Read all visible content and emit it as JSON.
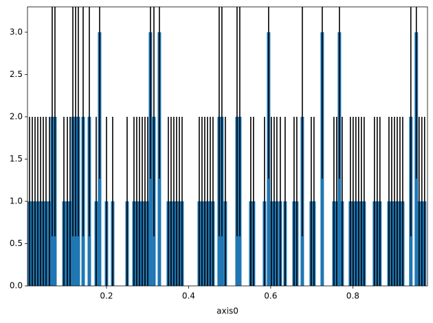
{
  "chart_data": {
    "type": "bar",
    "xlabel": "axis0",
    "color": "#1f77b4",
    "error_color": "#000000",
    "x": [
      0.0125,
      0.0192,
      0.0259,
      0.0326,
      0.0393,
      0.046,
      0.0527,
      0.0611,
      0.0677,
      0.0744,
      0.0962,
      0.1046,
      0.1113,
      0.118,
      0.1247,
      0.1313,
      0.1431,
      0.1581,
      0.1749,
      0.1832,
      0.2,
      0.215,
      0.2502,
      0.2669,
      0.2736,
      0.2803,
      0.287,
      0.2937,
      0.3004,
      0.3071,
      0.3155,
      0.3288,
      0.3506,
      0.3573,
      0.364,
      0.3707,
      0.3774,
      0.3841,
      0.4259,
      0.4326,
      0.4393,
      0.446,
      0.4527,
      0.4594,
      0.4744,
      0.4811,
      0.4895,
      0.518,
      0.5247,
      0.5514,
      0.5581,
      0.5849,
      0.5949,
      0.6016,
      0.6083,
      0.615,
      0.6234,
      0.6351,
      0.6569,
      0.6636,
      0.677,
      0.6987,
      0.7054,
      0.7255,
      0.754,
      0.7607,
      0.7674,
      0.7741,
      0.7941,
      0.8008,
      0.8075,
      0.8142,
      0.8209,
      0.8276,
      0.8527,
      0.8594,
      0.8661,
      0.8881,
      0.8948,
      0.9015,
      0.9082,
      0.9149,
      0.9216,
      0.9414,
      0.9548,
      0.9615,
      0.9682,
      0.9749
    ],
    "values": [
      1,
      1,
      1,
      1,
      1,
      1,
      1,
      1,
      2,
      2,
      1,
      1,
      1,
      2,
      2,
      2,
      2,
      2,
      1,
      3,
      1,
      1,
      1,
      1,
      1,
      1,
      1,
      1,
      1,
      3,
      2,
      3,
      1,
      1,
      1,
      1,
      1,
      1,
      1,
      1,
      1,
      1,
      1,
      1,
      2,
      2,
      1,
      2,
      2,
      1,
      1,
      1,
      3,
      1,
      1,
      1,
      1,
      1,
      1,
      1,
      2,
      1,
      1,
      3,
      1,
      1,
      3,
      1,
      1,
      1,
      1,
      1,
      1,
      1,
      1,
      1,
      1,
      1,
      1,
      1,
      1,
      1,
      1,
      2,
      3,
      1,
      1,
      1
    ],
    "errors": [
      1,
      1,
      1,
      1,
      1,
      1,
      1,
      1,
      1.414,
      1.414,
      1,
      1,
      1,
      1.414,
      1.414,
      1.414,
      1.414,
      1.414,
      1,
      1.732,
      1,
      1,
      1,
      1,
      1,
      1,
      1,
      1,
      1,
      1.732,
      1.414,
      1.732,
      1,
      1,
      1,
      1,
      1,
      1,
      1,
      1,
      1,
      1,
      1,
      1,
      1.414,
      1.414,
      1,
      1.414,
      1.414,
      1,
      1,
      1,
      1.732,
      1,
      1,
      1,
      1,
      1,
      1,
      1,
      1.414,
      1,
      1,
      1.732,
      1,
      1,
      1.732,
      1,
      1,
      1,
      1,
      1,
      1,
      1,
      1,
      1,
      1,
      1,
      1,
      1,
      1,
      1,
      1,
      1.414,
      1.732,
      1,
      1,
      1
    ],
    "xlim": [
      0.0075,
      0.982
    ],
    "ylim": [
      0,
      3.3
    ],
    "xticks": [
      0.2,
      0.4,
      0.6,
      0.8
    ],
    "yticks": [
      {
        "value": 0,
        "label": "0.0"
      },
      0.5,
      {
        "value": 1,
        "label": "1.0"
      },
      1.5,
      {
        "value": 2,
        "label": "2.0"
      },
      2.5,
      {
        "value": 3,
        "label": "3.0"
      }
    ]
  }
}
